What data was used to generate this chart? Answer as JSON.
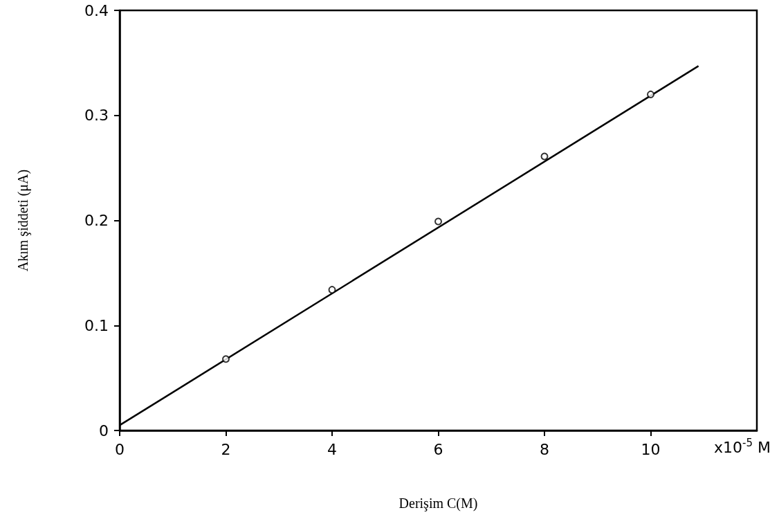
{
  "chart_data": {
    "type": "scatter",
    "xlabel": "Derişim C(M)",
    "ylabel": "Akım şiddeti (μA)",
    "x": [
      2,
      4,
      6,
      8,
      10
    ],
    "series": [
      {
        "color": "#000000",
        "marker": "circle",
        "values": [
          0.068,
          0.134,
          0.199,
          0.261,
          0.32
        ]
      },
      {
        "type": "line",
        "marker": "none",
        "color": "#000000",
        "x": [
          0,
          10.9
        ],
        "values": [
          0.005,
          0.347
        ]
      }
    ],
    "xlim": [
      0,
      12
    ],
    "xticks": [
      0,
      2,
      4,
      6,
      8,
      10
    ],
    "ylim": [
      0,
      0.4
    ],
    "yticks": [
      {
        "value": 0,
        "label": "0"
      },
      0.1,
      0.2,
      0.3,
      0.4
    ],
    "annotations": [
      "x10$^{-5}$ M"
    ],
    "grid": false
  }
}
